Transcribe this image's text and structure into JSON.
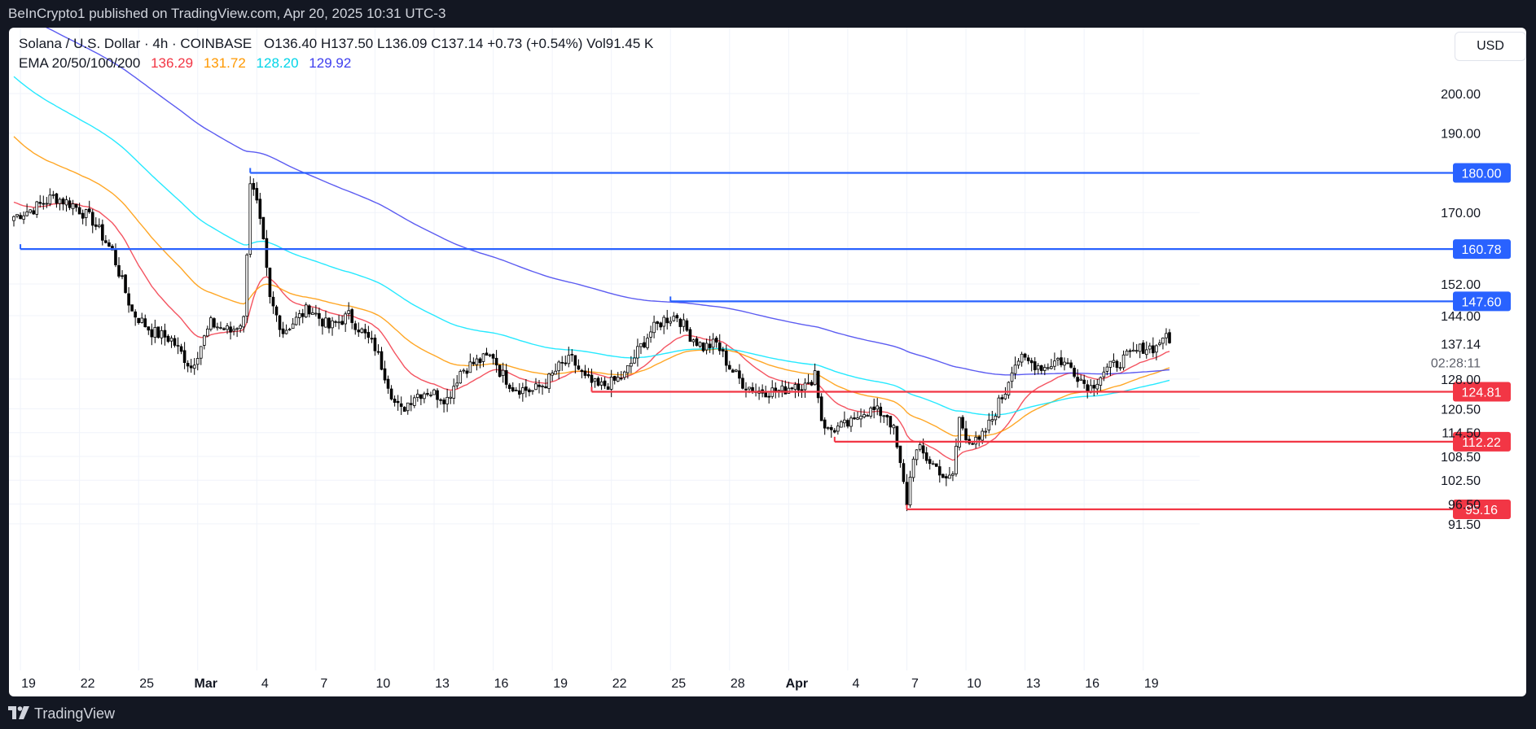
{
  "header": {
    "published_text": "BeInCrypto1 published on TradingView.com, Apr 20, 2025 10:31 UTC-3"
  },
  "legend": {
    "symbol": "Solana / U.S. Dollar · 4h · COINBASE",
    "open": "O136.40",
    "high": "H137.50",
    "low": "L136.09",
    "close": "C137.14",
    "change": "+0.73 (+0.54%)",
    "volume": "Vol91.45 K",
    "ema_label": "EMA 20/50/100/200",
    "ema_values": [
      "136.29",
      "131.72",
      "128.20",
      "129.92"
    ]
  },
  "currency_button": "USD",
  "footer": {
    "brand": "TradingView"
  },
  "colors": {
    "up": "#ffffff",
    "down": "#000000",
    "candle_border": "#000000",
    "ema20": "#f23645",
    "ema50": "#ff9800",
    "ema100": "#00e5ff",
    "ema200": "#3f3fef",
    "resistance": "#2962ff",
    "support": "#f23645",
    "grid": "#f0f3fa",
    "axis_text": "#131722"
  },
  "chart_data": {
    "type": "candlestick",
    "title": "Solana / U.S. Dollar · 4h · COINBASE",
    "ylim": [
      88,
      210
    ],
    "y_ticks": [
      "200.00",
      "190.00",
      "170.00",
      "152.00",
      "144.00",
      "128.00",
      "120.50",
      "114.50",
      "108.50",
      "102.50",
      "96.50",
      "91.50"
    ],
    "x_ticks": [
      {
        "label": "19",
        "index": 2
      },
      {
        "label": "22",
        "index": 20
      },
      {
        "label": "25",
        "index": 38
      },
      {
        "label": "Mar",
        "index": 56
      },
      {
        "label": "4",
        "index": 74
      },
      {
        "label": "7",
        "index": 92
      },
      {
        "label": "10",
        "index": 110
      },
      {
        "label": "13",
        "index": 128
      },
      {
        "label": "16",
        "index": 146
      },
      {
        "label": "19",
        "index": 164
      },
      {
        "label": "22",
        "index": 182
      },
      {
        "label": "25",
        "index": 200
      },
      {
        "label": "28",
        "index": 218
      },
      {
        "label": "Apr",
        "index": 236
      },
      {
        "label": "4",
        "index": 254
      },
      {
        "label": "7",
        "index": 272
      },
      {
        "label": "10",
        "index": 290
      },
      {
        "label": "13",
        "index": 308
      },
      {
        "label": "16",
        "index": 326
      },
      {
        "label": "19",
        "index": 344
      }
    ],
    "close_anchors": [
      [
        0,
        169
      ],
      [
        6,
        171
      ],
      [
        12,
        174
      ],
      [
        18,
        172
      ],
      [
        24,
        168
      ],
      [
        30,
        160
      ],
      [
        36,
        145
      ],
      [
        42,
        140
      ],
      [
        48,
        138
      ],
      [
        54,
        131
      ],
      [
        60,
        142
      ],
      [
        66,
        140
      ],
      [
        70,
        143
      ],
      [
        72,
        178
      ],
      [
        74,
        172
      ],
      [
        76,
        162
      ],
      [
        78,
        148
      ],
      [
        82,
        140
      ],
      [
        86,
        143
      ],
      [
        90,
        146
      ],
      [
        96,
        141
      ],
      [
        102,
        144
      ],
      [
        106,
        140
      ],
      [
        110,
        136
      ],
      [
        114,
        127
      ],
      [
        116,
        122
      ],
      [
        118,
        120
      ],
      [
        122,
        124
      ],
      [
        126,
        125
      ],
      [
        132,
        123
      ],
      [
        136,
        130
      ],
      [
        140,
        132
      ],
      [
        146,
        134
      ],
      [
        148,
        130
      ],
      [
        152,
        126
      ],
      [
        158,
        125
      ],
      [
        162,
        127
      ],
      [
        166,
        131
      ],
      [
        170,
        133
      ],
      [
        174,
        128
      ],
      [
        178,
        126
      ],
      [
        182,
        127
      ],
      [
        186,
        129
      ],
      [
        190,
        135
      ],
      [
        194,
        140
      ],
      [
        198,
        143
      ],
      [
        202,
        144
      ],
      [
        206,
        139
      ],
      [
        210,
        136
      ],
      [
        214,
        137
      ],
      [
        218,
        131
      ],
      [
        222,
        127
      ],
      [
        226,
        125
      ],
      [
        230,
        125
      ],
      [
        234,
        125
      ],
      [
        238,
        127
      ],
      [
        242,
        126
      ],
      [
        244,
        130
      ],
      [
        246,
        118
      ],
      [
        248,
        115
      ],
      [
        252,
        116
      ],
      [
        256,
        117
      ],
      [
        258,
        120
      ],
      [
        262,
        120
      ],
      [
        266,
        119
      ],
      [
        268,
        115
      ],
      [
        270,
        106
      ],
      [
        272,
        97
      ],
      [
        274,
        109
      ],
      [
        276,
        110
      ],
      [
        278,
        108
      ],
      [
        282,
        105
      ],
      [
        284,
        102
      ],
      [
        286,
        104
      ],
      [
        288,
        118
      ],
      [
        290,
        114
      ],
      [
        292,
        112
      ],
      [
        294,
        112
      ],
      [
        298,
        118
      ],
      [
        300,
        122
      ],
      [
        302,
        125
      ],
      [
        304,
        131
      ],
      [
        306,
        133
      ],
      [
        310,
        132
      ],
      [
        314,
        131
      ],
      [
        318,
        133
      ],
      [
        322,
        131
      ],
      [
        326,
        127
      ],
      [
        328,
        126
      ],
      [
        332,
        130
      ],
      [
        336,
        132
      ],
      [
        340,
        134
      ],
      [
        344,
        136
      ],
      [
        348,
        136
      ],
      [
        350,
        139
      ],
      [
        352,
        137.14
      ]
    ],
    "series": [
      {
        "name": "EMA 20",
        "last": 136.29
      },
      {
        "name": "EMA 50",
        "last": 131.72
      },
      {
        "name": "EMA 100",
        "last": 128.2
      },
      {
        "name": "EMA 200",
        "last": 129.92
      }
    ],
    "horizontal_levels": [
      {
        "value": 180.0,
        "label": "180.00",
        "kind": "resistance",
        "start_index": 72
      },
      {
        "value": 160.78,
        "label": "160.78",
        "kind": "resistance",
        "start_index": 2
      },
      {
        "value": 147.6,
        "label": "147.60",
        "kind": "resistance",
        "start_index": 200
      },
      {
        "value": 124.81,
        "label": "124.81",
        "kind": "support",
        "start_index": 176
      },
      {
        "value": 112.22,
        "label": "112.22",
        "kind": "support",
        "start_index": 250
      },
      {
        "value": 95.16,
        "label": "95.16",
        "kind": "support",
        "start_index": 272
      }
    ],
    "last_price": {
      "value": 137.14,
      "label": "137.14",
      "countdown": "02:28:11"
    },
    "total_candles": 353
  }
}
